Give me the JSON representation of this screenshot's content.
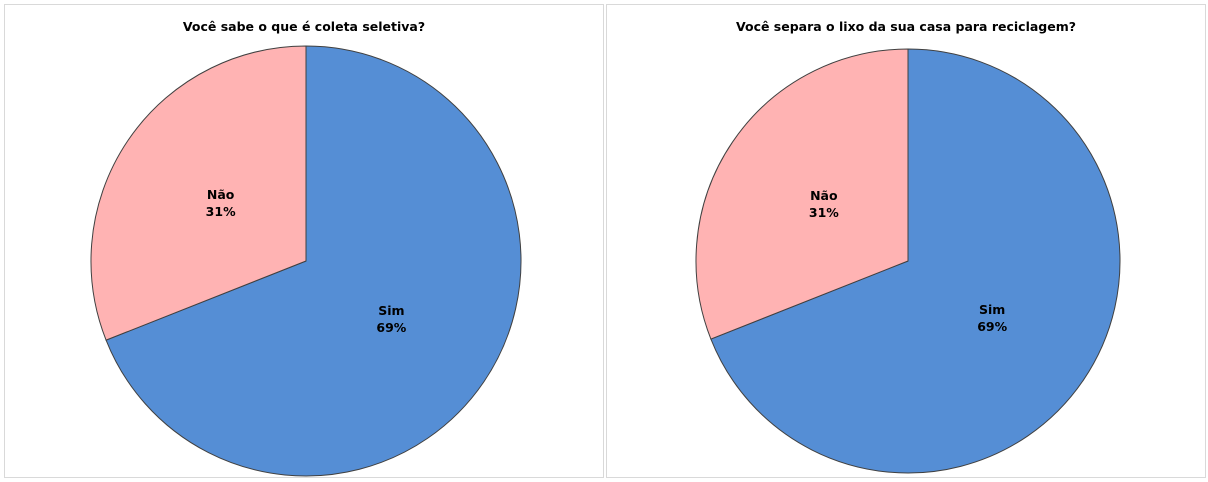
{
  "chart_data": [
    {
      "type": "pie",
      "title": "Você sabe o que é coleta seletiva?",
      "categories": [
        "Sim",
        "Não"
      ],
      "values": [
        69,
        31
      ],
      "labels": [
        "69%",
        "31%"
      ],
      "colors": [
        "#558ed5",
        "#ffb3b3"
      ],
      "legend": "none",
      "start_angle_deg": 0,
      "direction": "clockwise"
    },
    {
      "type": "pie",
      "title": "Você separa o lixo da sua casa para reciclagem?",
      "categories": [
        "Sim",
        "Não"
      ],
      "values": [
        69,
        31
      ],
      "labels": [
        "69%",
        "31%"
      ],
      "colors": [
        "#558ed5",
        "#ffb3b3"
      ],
      "legend": "none",
      "start_angle_deg": 0,
      "direction": "clockwise"
    }
  ],
  "colors": {
    "slice_stroke": "#404040",
    "panel_border": "#d9d9d9"
  }
}
